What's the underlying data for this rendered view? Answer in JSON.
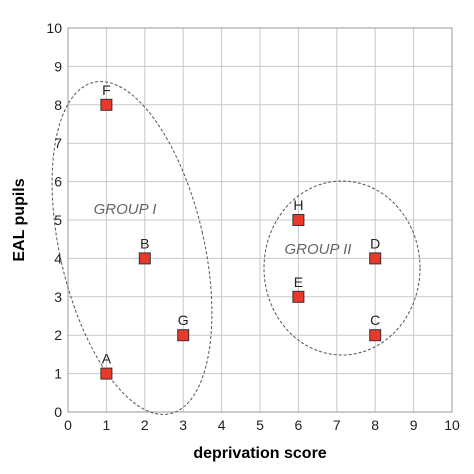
{
  "chart_data": {
    "type": "scatter",
    "title": "",
    "xlabel": "deprivation score",
    "ylabel": "EAL pupils",
    "xlim": [
      0,
      10
    ],
    "ylim": [
      0,
      10
    ],
    "x_ticks": [
      0,
      1,
      2,
      3,
      4,
      5,
      6,
      7,
      8,
      9,
      10
    ],
    "y_ticks": [
      0,
      1,
      2,
      3,
      4,
      5,
      6,
      7,
      8,
      9,
      10
    ],
    "grid": true,
    "marker_color": "#e8392b",
    "points": [
      {
        "label": "A",
        "x": 1,
        "y": 1
      },
      {
        "label": "B",
        "x": 2,
        "y": 4
      },
      {
        "label": "C",
        "x": 8,
        "y": 2
      },
      {
        "label": "D",
        "x": 8,
        "y": 4
      },
      {
        "label": "E",
        "x": 6,
        "y": 3
      },
      {
        "label": "F",
        "x": 1,
        "y": 8
      },
      {
        "label": "G",
        "x": 3,
        "y": 2
      },
      {
        "label": "H",
        "x": 6,
        "y": 5
      }
    ],
    "groups": [
      {
        "label": "GROUP I",
        "members": [
          "A",
          "B",
          "F",
          "G"
        ]
      },
      {
        "label": "GROUP II",
        "members": [
          "C",
          "D",
          "E",
          "H"
        ]
      }
    ]
  }
}
